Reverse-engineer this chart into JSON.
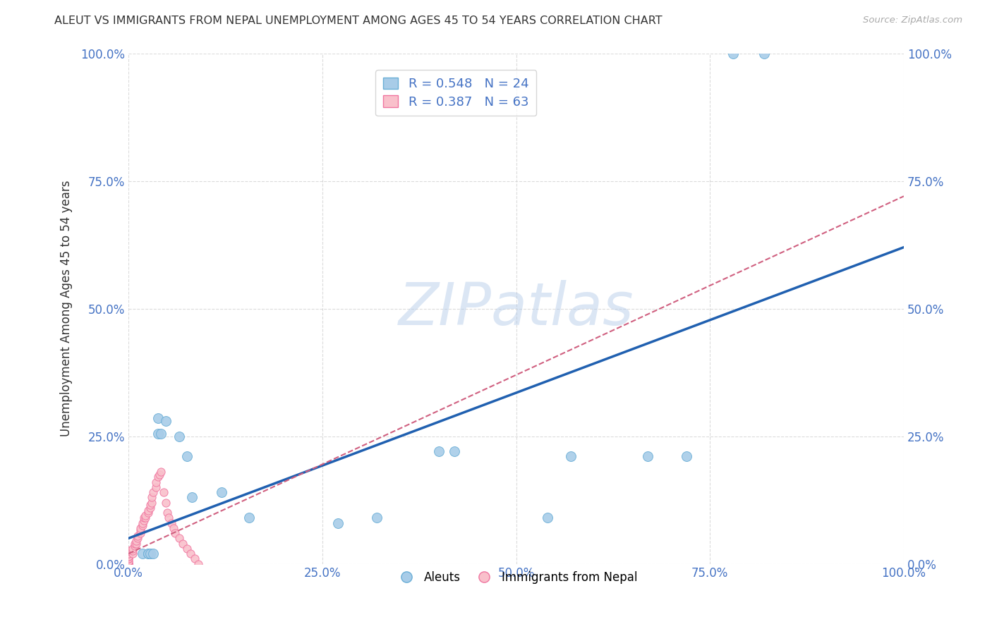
{
  "title": "ALEUT VS IMMIGRANTS FROM NEPAL UNEMPLOYMENT AMONG AGES 45 TO 54 YEARS CORRELATION CHART",
  "source": "Source: ZipAtlas.com",
  "ylabel": "Unemployment Among Ages 45 to 54 years",
  "xlim": [
    0.0,
    1.0
  ],
  "ylim": [
    0.0,
    1.0
  ],
  "xticks": [
    0.0,
    0.25,
    0.5,
    0.75,
    1.0
  ],
  "yticks": [
    0.0,
    0.25,
    0.5,
    0.75,
    1.0
  ],
  "xticklabels": [
    "0.0%",
    "25.0%",
    "50.0%",
    "75.0%",
    "100.0%"
  ],
  "yticklabels": [
    "0.0%",
    "25.0%",
    "50.0%",
    "75.0%",
    "100.0%"
  ],
  "aleuts_color": "#a8cce8",
  "aleuts_edge_color": "#6aaed6",
  "nepal_color": "#f9c0cb",
  "nepal_edge_color": "#f075a0",
  "trendline_aleuts_color": "#2060b0",
  "trendline_nepal_color": "#d06080",
  "legend_R_aleuts": "R = 0.548",
  "legend_N_aleuts": "N = 24",
  "legend_R_nepal": "R = 0.387",
  "legend_N_nepal": "N = 63",
  "watermark_text": "ZIPatlas",
  "background_color": "#ffffff",
  "grid_color": "#cccccc",
  "aleuts_x": [
    0.018,
    0.025,
    0.025,
    0.028,
    0.032,
    0.038,
    0.038,
    0.042,
    0.048,
    0.065,
    0.075,
    0.082,
    0.12,
    0.155,
    0.27,
    0.32,
    0.4,
    0.42,
    0.54,
    0.57,
    0.67,
    0.72,
    0.78,
    0.82
  ],
  "aleuts_y": [
    0.02,
    0.02,
    0.02,
    0.02,
    0.02,
    0.255,
    0.285,
    0.255,
    0.28,
    0.25,
    0.21,
    0.13,
    0.14,
    0.09,
    0.08,
    0.09,
    0.22,
    0.22,
    0.09,
    0.21,
    0.21,
    0.21,
    1.0,
    1.0
  ],
  "nepal_x": [
    0.0,
    0.0,
    0.0,
    0.0,
    0.0,
    0.0,
    0.0,
    0.0,
    0.0,
    0.0,
    0.0,
    0.0,
    0.0,
    0.0,
    0.0,
    0.0,
    0.0,
    0.0,
    0.0,
    0.0,
    0.005,
    0.005,
    0.005,
    0.008,
    0.008,
    0.01,
    0.01,
    0.012,
    0.012,
    0.015,
    0.015,
    0.015,
    0.018,
    0.018,
    0.02,
    0.02,
    0.022,
    0.022,
    0.025,
    0.025,
    0.028,
    0.028,
    0.03,
    0.03,
    0.032,
    0.035,
    0.035,
    0.038,
    0.04,
    0.042,
    0.045,
    0.048,
    0.05,
    0.052,
    0.055,
    0.058,
    0.06,
    0.065,
    0.07,
    0.075,
    0.08,
    0.085,
    0.09
  ],
  "nepal_y": [
    0.0,
    0.0,
    0.0,
    0.0,
    0.0,
    0.0,
    0.0,
    0.0,
    0.0,
    0.0,
    0.005,
    0.005,
    0.01,
    0.01,
    0.015,
    0.015,
    0.02,
    0.02,
    0.025,
    0.025,
    0.02,
    0.025,
    0.03,
    0.035,
    0.04,
    0.04,
    0.045,
    0.05,
    0.055,
    0.06,
    0.065,
    0.07,
    0.075,
    0.08,
    0.085,
    0.09,
    0.09,
    0.095,
    0.1,
    0.105,
    0.11,
    0.115,
    0.12,
    0.13,
    0.14,
    0.15,
    0.16,
    0.17,
    0.175,
    0.18,
    0.14,
    0.12,
    0.1,
    0.09,
    0.08,
    0.07,
    0.06,
    0.05,
    0.04,
    0.03,
    0.02,
    0.01,
    0.0
  ],
  "aleuts_trendline_x": [
    0.0,
    1.0
  ],
  "aleuts_trendline_y": [
    0.05,
    0.62
  ],
  "nepal_trendline_x": [
    0.0,
    1.0
  ],
  "nepal_trendline_y": [
    0.02,
    0.72
  ],
  "marker_size": 100,
  "marker_size_nepal": 65
}
